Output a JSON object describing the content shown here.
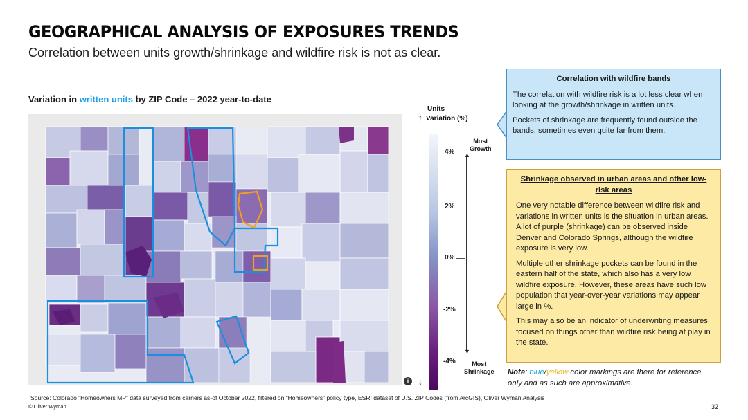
{
  "header": {
    "title": "GEOGRAPHICAL ANALYSIS OF EXPOSURES TRENDS",
    "subtitle": "Correlation between units growth/shrinkage and wildfire risk is not as clear."
  },
  "map": {
    "title_pre": "Variation in ",
    "title_highlight": "written units",
    "title_post": " by ZIP Code – 2022 year-to-date",
    "info": "i"
  },
  "legend": {
    "title_line1": "Units",
    "title_line2": "Variation (%)",
    "ticks": [
      "4%",
      "2%",
      "0%",
      "-2%",
      "-4%"
    ],
    "top_label_line1": "Most",
    "top_label_line2": "Growth",
    "bottom_label_line1": "Most",
    "bottom_label_line2": "Shrinkage"
  },
  "callout_blue": {
    "heading": "Correlation with wildfire bands",
    "p1": "The correlation with wildfire risk is a lot less clear when looking at the growth/shrinkage in written units.",
    "p2": "Pockets of shrinkage are frequently found outside the bands, sometimes even quite far from them."
  },
  "callout_yellow": {
    "heading": "Shrinkage observed in urban areas and other low-risk areas",
    "p1_a": "One very notable difference between wildfire risk and variations in written units is the situation in urban areas. A lot of purple (shrinkage) can be observed inside ",
    "p1_denver": "Denver",
    "p1_and": " and ",
    "p1_springs": "Colorado Springs",
    "p1_b": ", although the wildfire exposure is very low.",
    "p2": "Multiple other shrinkage pockets can be found in the eastern half of the state, which also has a very low wildfire exposure. However, these areas have such low population that year-over-year variations may appear large in %.",
    "p3": "This may also be an indicator of underwriting measures focused on things other than wildfire risk being at play in the state."
  },
  "note": {
    "label": "Note",
    "sep1": ": ",
    "blue": "blue",
    "slash": "/",
    "yellow": "yellow",
    "rest": " color markings are there for reference only and as such are approximative."
  },
  "footer": {
    "source": "Source: Colorado “Homeowners MP” data surveyed from carriers as-of October 2022, filtered on “Homeowners” policy type, ESRI dataset of U.S. ZIP Codes (from ArcGIS), Oliver Wyman Analysis",
    "copyright": "© Oliver Wyman",
    "page": "32"
  },
  "colors": {
    "highlight_blue": "#1aa0e0",
    "band_blue": "#1a8fe0",
    "urban_orange": "#f0a020",
    "blue_box": "#c9e6f8",
    "yellow_box": "#fdeaa5"
  }
}
